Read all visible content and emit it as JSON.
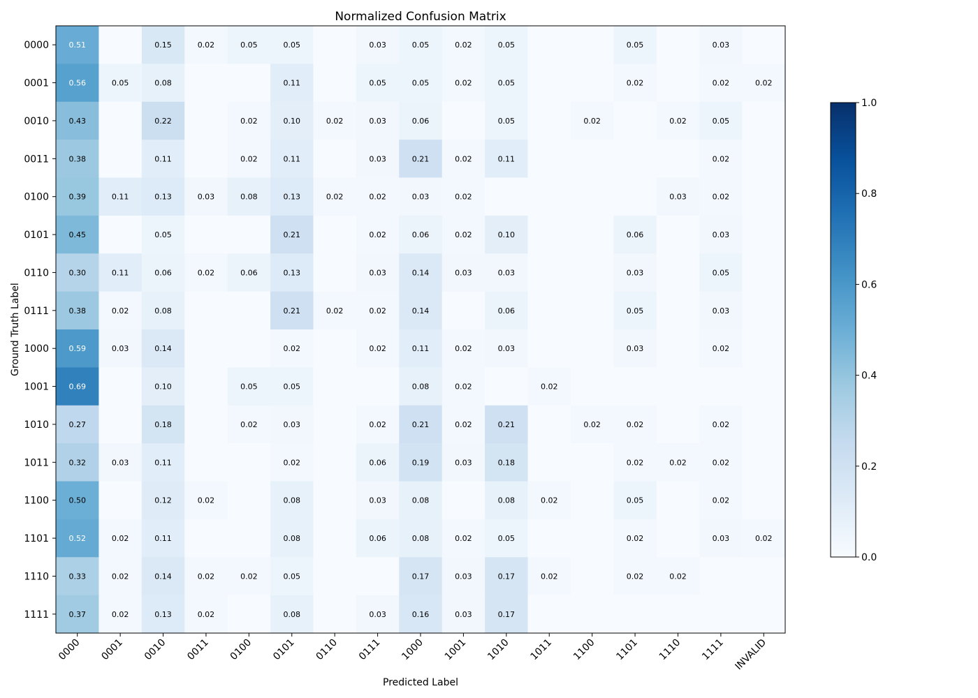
{
  "chart_data": {
    "type": "heatmap",
    "title": "Normalized Confusion Matrix",
    "xlabel": "Predicted Label",
    "ylabel": "Ground Truth Label",
    "x_categories": [
      "0000",
      "0001",
      "0010",
      "0011",
      "0100",
      "0101",
      "0110",
      "0111",
      "1000",
      "1001",
      "1010",
      "1011",
      "1100",
      "1101",
      "1110",
      "1111",
      "INVALID"
    ],
    "y_categories": [
      "0000",
      "0001",
      "0010",
      "0011",
      "0100",
      "0101",
      "0110",
      "0111",
      "1000",
      "1001",
      "1010",
      "1011",
      "1100",
      "1101",
      "1110",
      "1111"
    ],
    "values": [
      [
        0.51,
        0,
        0.15,
        0.02,
        0.05,
        0.05,
        0,
        0.03,
        0.05,
        0.02,
        0.05,
        0,
        0,
        0.05,
        0,
        0.03,
        0
      ],
      [
        0.56,
        0.05,
        0.08,
        0,
        0,
        0.11,
        0,
        0.05,
        0.05,
        0.02,
        0.05,
        0,
        0,
        0.02,
        0,
        0.02,
        0.02
      ],
      [
        0.43,
        0,
        0.22,
        0,
        0.02,
        0.1,
        0.02,
        0.03,
        0.06,
        0,
        0.05,
        0,
        0.02,
        0,
        0.02,
        0.05,
        0
      ],
      [
        0.38,
        0,
        0.11,
        0,
        0.02,
        0.11,
        0,
        0.03,
        0.21,
        0.02,
        0.11,
        0,
        0,
        0,
        0,
        0.02,
        0
      ],
      [
        0.39,
        0.11,
        0.13,
        0.03,
        0.08,
        0.13,
        0.02,
        0.02,
        0.03,
        0.02,
        0,
        0,
        0,
        0,
        0.03,
        0.02,
        0
      ],
      [
        0.45,
        0,
        0.05,
        0,
        0,
        0.21,
        0,
        0.02,
        0.06,
        0.02,
        0.1,
        0,
        0,
        0.06,
        0,
        0.03,
        0
      ],
      [
        0.3,
        0.11,
        0.06,
        0.02,
        0.06,
        0.13,
        0,
        0.03,
        0.14,
        0.03,
        0.03,
        0,
        0,
        0.03,
        0,
        0.05,
        0
      ],
      [
        0.38,
        0.02,
        0.08,
        0,
        0,
        0.21,
        0.02,
        0.02,
        0.14,
        0,
        0.06,
        0,
        0,
        0.05,
        0,
        0.03,
        0
      ],
      [
        0.59,
        0.03,
        0.14,
        0,
        0,
        0.02,
        0,
        0.02,
        0.11,
        0.02,
        0.03,
        0,
        0,
        0.03,
        0,
        0.02,
        0
      ],
      [
        0.69,
        0,
        0.1,
        0,
        0.05,
        0.05,
        0,
        0,
        0.08,
        0.02,
        0,
        0.02,
        0,
        0,
        0,
        0,
        0
      ],
      [
        0.27,
        0,
        0.18,
        0,
        0.02,
        0.03,
        0,
        0.02,
        0.21,
        0.02,
        0.21,
        0,
        0.02,
        0.02,
        0,
        0.02,
        0
      ],
      [
        0.32,
        0.03,
        0.11,
        0,
        0,
        0.02,
        0,
        0.06,
        0.19,
        0.03,
        0.18,
        0,
        0,
        0.02,
        0.02,
        0.02,
        0
      ],
      [
        0.5,
        0,
        0.12,
        0.02,
        0,
        0.08,
        0,
        0.03,
        0.08,
        0,
        0.08,
        0.02,
        0,
        0.05,
        0,
        0.02,
        0
      ],
      [
        0.52,
        0.02,
        0.11,
        0,
        0,
        0.08,
        0,
        0.06,
        0.08,
        0.02,
        0.05,
        0,
        0,
        0.02,
        0,
        0.03,
        0.02
      ],
      [
        0.33,
        0.02,
        0.14,
        0.02,
        0.02,
        0.05,
        0,
        0,
        0.17,
        0.03,
        0.17,
        0.02,
        0,
        0.02,
        0.02,
        0,
        0
      ],
      [
        0.37,
        0.02,
        0.13,
        0.02,
        0,
        0.08,
        0,
        0.03,
        0.16,
        0.03,
        0.17,
        0,
        0,
        0,
        0,
        0,
        0
      ]
    ],
    "value_format": "2 decimals, blank when 0",
    "colorscale": {
      "name": "Blues",
      "range": [
        0.0,
        1.0
      ],
      "ticks": [
        "0.0",
        "0.2",
        "0.4",
        "0.6",
        "0.8",
        "1.0"
      ],
      "low_color": "#f7fbff",
      "high_color": "#08306b"
    },
    "grid": false,
    "colorbar_placement": "right"
  }
}
